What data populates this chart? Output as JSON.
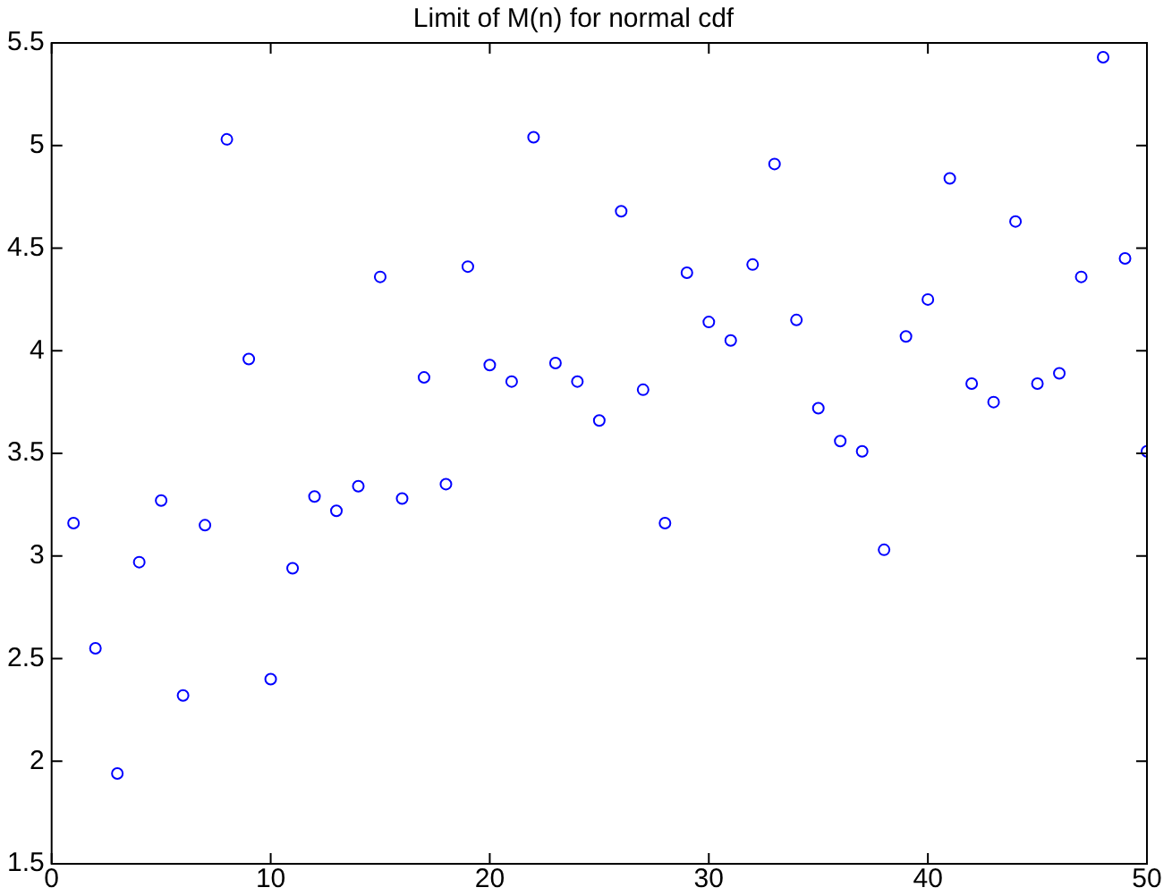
{
  "chart_data": {
    "type": "scatter",
    "title": "Limit of M(n) for normal cdf",
    "x": [
      1,
      2,
      3,
      4,
      5,
      6,
      7,
      8,
      9,
      10,
      11,
      12,
      13,
      14,
      15,
      16,
      17,
      18,
      19,
      20,
      21,
      22,
      23,
      24,
      25,
      26,
      27,
      28,
      29,
      30,
      31,
      32,
      33,
      34,
      35,
      36,
      37,
      38,
      39,
      40,
      41,
      42,
      43,
      44,
      45,
      46,
      47,
      48,
      49,
      50
    ],
    "series": [
      {
        "color": "#0000ff",
        "values": [
          3.16,
          2.55,
          1.94,
          2.97,
          3.27,
          2.32,
          3.15,
          5.03,
          3.96,
          2.4,
          2.94,
          3.29,
          3.22,
          3.34,
          4.36,
          3.28,
          3.87,
          3.35,
          4.41,
          3.93,
          3.85,
          5.04,
          3.94,
          3.85,
          3.66,
          4.68,
          3.81,
          3.16,
          4.38,
          4.14,
          4.05,
          4.42,
          4.91,
          4.15,
          3.72,
          3.56,
          3.51,
          3.03,
          4.07,
          4.25,
          4.84,
          3.84,
          3.75,
          4.63,
          3.84,
          3.89,
          4.36,
          5.43,
          4.45,
          3.51
        ]
      }
    ],
    "xlim": [
      0,
      50
    ],
    "xticks": [
      0,
      10,
      20,
      30,
      40,
      50
    ],
    "ylim": [
      1.5,
      5.5
    ],
    "yticks": [
      1.5,
      2,
      2.5,
      3,
      3.5,
      4,
      4.5,
      5,
      5.5
    ],
    "grid": false,
    "legend": false,
    "marker": "circle"
  }
}
